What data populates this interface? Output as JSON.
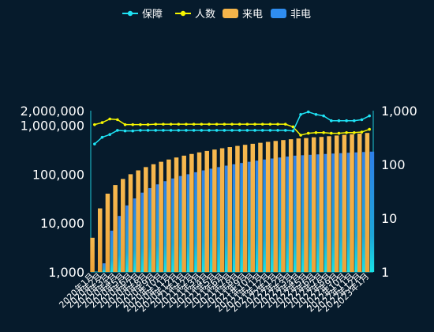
{
  "chart_data": {
    "type": "bar",
    "categories": [
      "2020年1月",
      "2020年2月",
      "2020年3月",
      "2020年4月",
      "2020年5月",
      "2020年6月",
      "2020年7月",
      "2020年8月",
      "2020年9月",
      "2020年10月",
      "2020年11月",
      "2020年12月",
      "2021年1月",
      "2021年2月",
      "2021年3月",
      "2021年4月",
      "2021年5月",
      "2021年6月",
      "2021年7月",
      "2021年8月",
      "2021年9月",
      "2021年10月",
      "2021年11月",
      "2021年12月",
      "2022年1月",
      "2022年2月",
      "2022年3月",
      "2022年4月",
      "2022年5月",
      "2022年6月",
      "2022年7月",
      "2022年8月",
      "2022年9月",
      "2022年10月",
      "2022年11月",
      "2022年12月",
      "2023年1月"
    ],
    "series": [
      {
        "name": "来电",
        "type": "bar",
        "axis": "left",
        "color": "#f5b54a",
        "values": [
          5000,
          20000,
          40000,
          60000,
          80000,
          100000,
          120000,
          140000,
          160000,
          180000,
          200000,
          220000,
          240000,
          260000,
          280000,
          300000,
          320000,
          340000,
          360000,
          380000,
          400000,
          420000,
          440000,
          460000,
          480000,
          500000,
          520000,
          540000,
          550000,
          570000,
          580000,
          600000,
          620000,
          640000,
          660000,
          680000,
          700000
        ]
      },
      {
        "name": "非电",
        "type": "bar",
        "axis": "left",
        "color": "#2f8df0",
        "values": [
          1000,
          1500,
          7000,
          14000,
          23000,
          32000,
          42000,
          52000,
          62000,
          72000,
          82000,
          92000,
          100000,
          110000,
          120000,
          130000,
          140000,
          150000,
          160000,
          170000,
          180000,
          190000,
          200000,
          210000,
          220000,
          230000,
          240000,
          245000,
          250000,
          255000,
          260000,
          265000,
          270000,
          275000,
          280000,
          285000,
          290000
        ]
      },
      {
        "name": "保障",
        "type": "line",
        "axis": "right",
        "color": "#1fe3f5",
        "values": [
          240,
          320,
          360,
          430,
          420,
          420,
          430,
          430,
          430,
          430,
          430,
          430,
          430,
          430,
          430,
          430,
          430,
          430,
          430,
          430,
          430,
          430,
          430,
          430,
          430,
          430,
          420,
          850,
          950,
          850,
          800,
          650,
          650,
          650,
          650,
          680,
          800
        ]
      },
      {
        "name": "人数",
        "type": "line",
        "axis": "right",
        "color": "#f6f600",
        "values": [
          550,
          600,
          700,
          680,
          550,
          550,
          550,
          550,
          560,
          560,
          560,
          560,
          560,
          560,
          560,
          560,
          560,
          560,
          560,
          560,
          560,
          560,
          560,
          560,
          560,
          560,
          500,
          350,
          380,
          390,
          390,
          380,
          380,
          390,
          390,
          400,
          450
        ]
      }
    ],
    "y_left": {
      "scale": "log",
      "min": 1000,
      "max": 2000000,
      "ticks": [
        "1,000",
        "10,000",
        "100,000",
        "1,000,000",
        "2,000,000"
      ]
    },
    "y_right": {
      "scale": "log",
      "min": 1,
      "max": 1000,
      "ticks": [
        "1",
        "10",
        "100",
        "1,000"
      ]
    },
    "legend_position": "top-center",
    "grid": false
  }
}
